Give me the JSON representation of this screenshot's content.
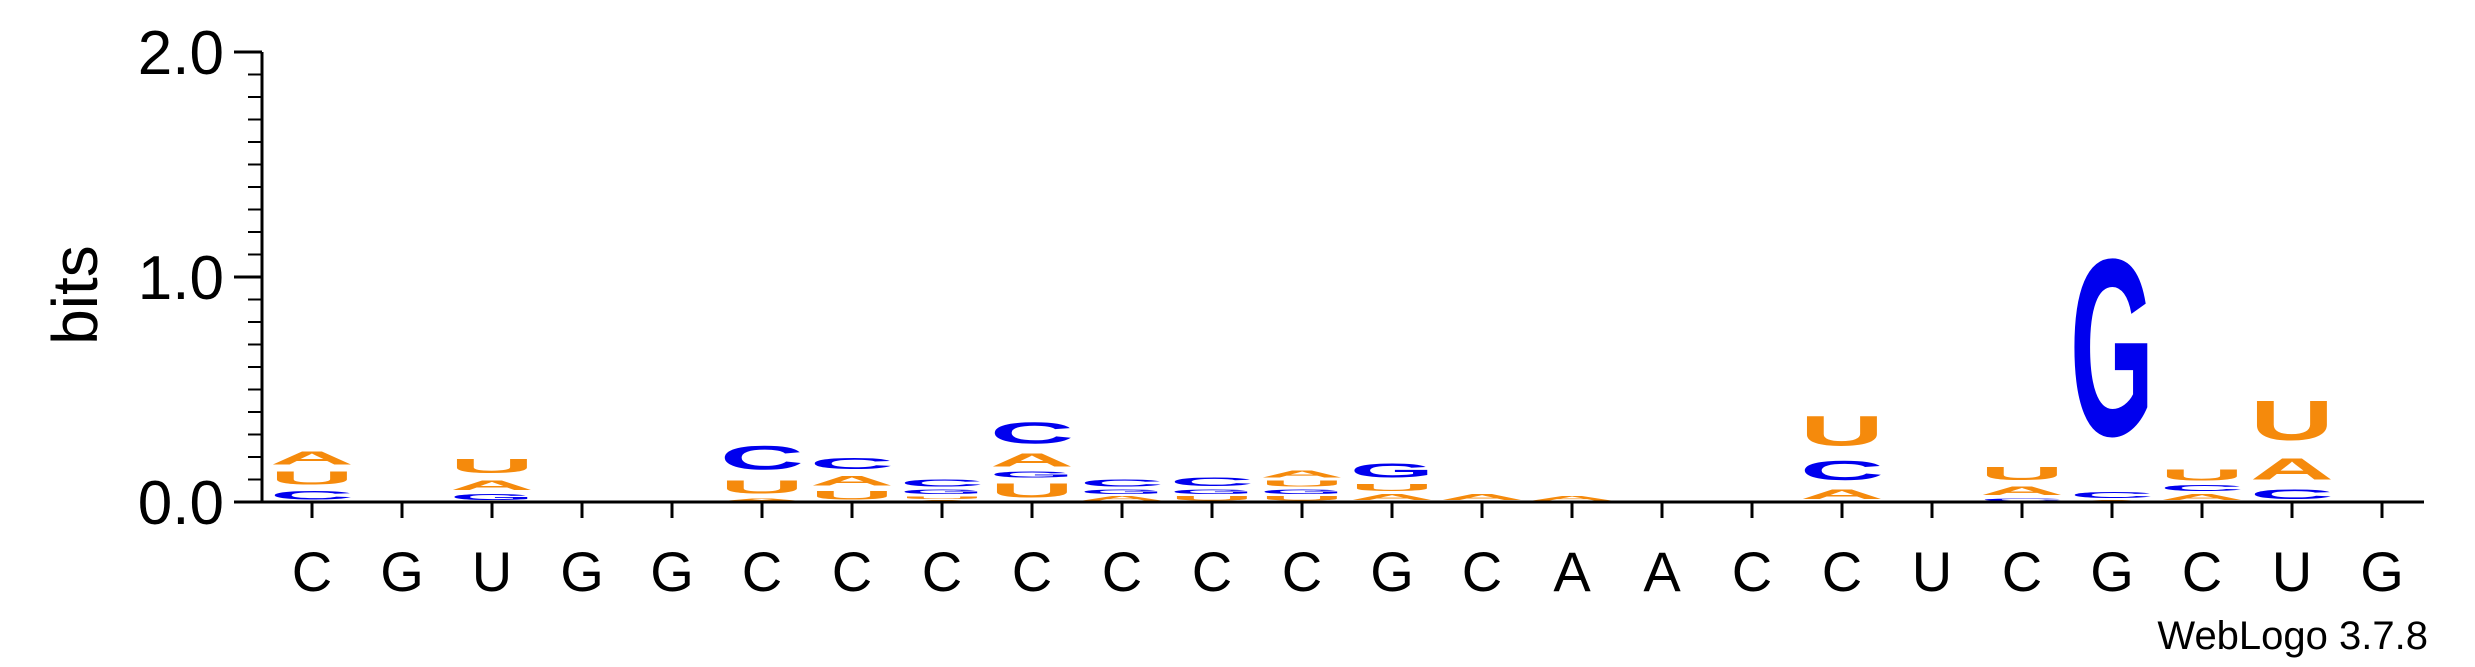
{
  "chart_data": {
    "type": "sequence-logo",
    "ylabel": "bits",
    "ylim": [
      0,
      2.0
    ],
    "yticks": [
      "0.0",
      "1.0",
      "2.0"
    ],
    "y_minor_step": 0.1,
    "credit": "WebLogo 3.7.8",
    "colors": {
      "A": "#f58a0c",
      "U": "#f58a0c",
      "C": "#0000ee",
      "G": "#0000ee"
    },
    "columns": [
      {
        "label": "C",
        "stack": [
          {
            "letter": "C",
            "height": 0.06
          },
          {
            "letter": "U",
            "height": 0.09
          },
          {
            "letter": "A",
            "height": 0.09
          }
        ]
      },
      {
        "label": "G",
        "stack": []
      },
      {
        "label": "U",
        "stack": [
          {
            "letter": "G",
            "height": 0.04
          },
          {
            "letter": "A",
            "height": 0.07
          },
          {
            "letter": "U",
            "height": 0.1
          }
        ]
      },
      {
        "label": "G",
        "stack": []
      },
      {
        "label": "G",
        "stack": []
      },
      {
        "label": "C",
        "stack": [
          {
            "letter": "A",
            "height": 0.02
          },
          {
            "letter": "U",
            "height": 0.09
          },
          {
            "letter": "C",
            "height": 0.17
          }
        ]
      },
      {
        "label": "C",
        "stack": [
          {
            "letter": "U",
            "height": 0.06
          },
          {
            "letter": "A",
            "height": 0.07
          },
          {
            "letter": "C",
            "height": 0.08
          }
        ]
      },
      {
        "label": "C",
        "stack": [
          {
            "letter": "A",
            "height": 0.01
          },
          {
            "letter": "U",
            "height": 0.02
          },
          {
            "letter": "G",
            "height": 0.03
          },
          {
            "letter": "C",
            "height": 0.05
          }
        ]
      },
      {
        "label": "C",
        "stack": [
          {
            "letter": "U",
            "height": 0.1
          },
          {
            "letter": "G",
            "height": 0.04
          },
          {
            "letter": "A",
            "height": 0.09
          },
          {
            "letter": "C",
            "height": 0.15
          }
        ]
      },
      {
        "label": "C",
        "stack": [
          {
            "letter": "A",
            "height": 0.03
          },
          {
            "letter": "G",
            "height": 0.03
          },
          {
            "letter": "C",
            "height": 0.05
          }
        ]
      },
      {
        "label": "C",
        "stack": [
          {
            "letter": "U",
            "height": 0.03
          },
          {
            "letter": "G",
            "height": 0.03
          },
          {
            "letter": "C",
            "height": 0.06
          }
        ]
      },
      {
        "label": "C",
        "stack": [
          {
            "letter": "U",
            "height": 0.03
          },
          {
            "letter": "G",
            "height": 0.03
          },
          {
            "letter": "U",
            "height": 0.04
          },
          {
            "letter": "A",
            "height": 0.05
          }
        ]
      },
      {
        "label": "G",
        "stack": [
          {
            "letter": "A",
            "height": 0.04
          },
          {
            "letter": "U",
            "height": 0.05
          },
          {
            "letter": "G",
            "height": 0.1
          }
        ]
      },
      {
        "label": "C",
        "stack": [
          {
            "letter": "A",
            "height": 0.04
          }
        ]
      },
      {
        "label": "A",
        "stack": [
          {
            "letter": "A",
            "height": 0.03
          }
        ]
      },
      {
        "label": "A",
        "stack": []
      },
      {
        "label": "C",
        "stack": []
      },
      {
        "label": "C",
        "stack": [
          {
            "letter": "A",
            "height": 0.07
          },
          {
            "letter": "C",
            "height": 0.14
          },
          {
            "letter": "U",
            "height": 0.21
          }
        ]
      },
      {
        "label": "U",
        "stack": []
      },
      {
        "label": "C",
        "stack": [
          {
            "letter": "C",
            "height": 0.02
          },
          {
            "letter": "A",
            "height": 0.06
          },
          {
            "letter": "U",
            "height": 0.09
          }
        ]
      },
      {
        "label": "G",
        "stack": [
          {
            "letter": "A",
            "height": 0.01
          },
          {
            "letter": "C",
            "height": 0.04
          },
          {
            "letter": "G",
            "height": 1.26
          }
        ]
      },
      {
        "label": "C",
        "stack": [
          {
            "letter": "A",
            "height": 0.04
          },
          {
            "letter": "C",
            "height": 0.04
          },
          {
            "letter": "U",
            "height": 0.08
          }
        ]
      },
      {
        "label": "U",
        "stack": [
          {
            "letter": "C",
            "height": 0.07
          },
          {
            "letter": "A",
            "height": 0.15
          },
          {
            "letter": "U",
            "height": 0.28
          }
        ]
      },
      {
        "label": "G",
        "stack": []
      }
    ]
  }
}
